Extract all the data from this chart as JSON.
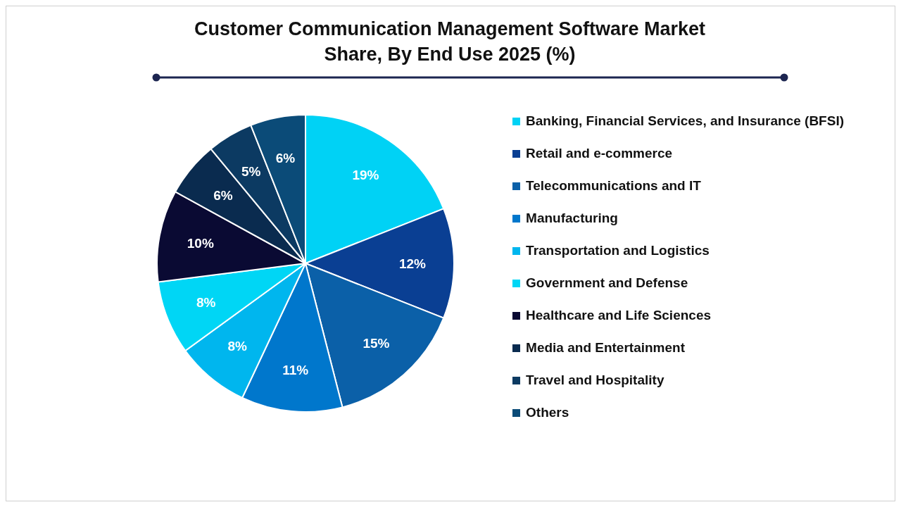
{
  "chart_data": {
    "type": "pie",
    "title": "Customer Communication Management Software Market Share, By End Use 2025 (%)",
    "categories": [
      "Banking, Financial Services, and Insurance (BFSI)",
      "Retail and e-commerce",
      "Telecommunications and IT",
      "Manufacturing",
      "Transportation and Logistics",
      "Government and Defense",
      "Healthcare and Life Sciences",
      "Media and Entertainment",
      "Travel and Hospitality",
      "Others"
    ],
    "values": [
      19,
      12,
      15,
      11,
      8,
      8,
      10,
      6,
      5,
      6
    ],
    "colors": [
      "#00d2f5",
      "#0a3f93",
      "#0b60a8",
      "#0077cc",
      "#00b6ee",
      "#00d6f5",
      "#0a0a33",
      "#0a2b4f",
      "#0c3a62",
      "#0b4b78"
    ],
    "value_labels": [
      "19%",
      "12%",
      "15%",
      "11%",
      "8%",
      "8%",
      "10%",
      "6%",
      "5%",
      "6%"
    ],
    "legend": "right"
  }
}
